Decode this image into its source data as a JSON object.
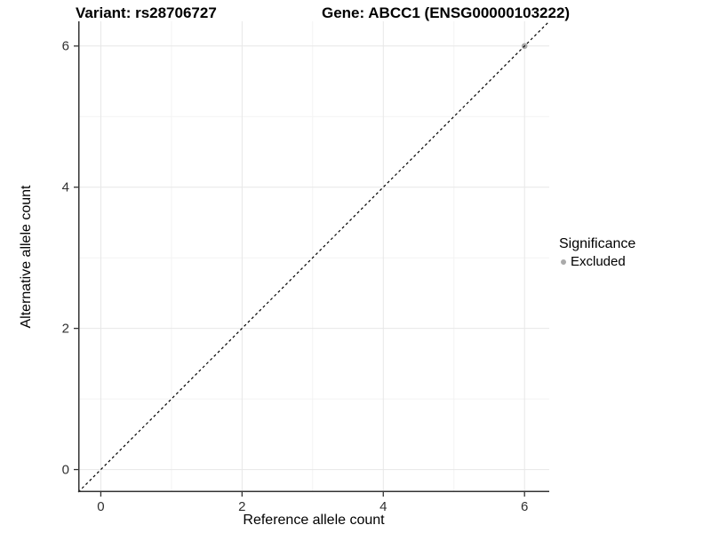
{
  "titles": {
    "variant": "Variant: rs28706727",
    "gene": "Gene: ABCC1 (ENSG00000103222)"
  },
  "chart_data": {
    "type": "scatter",
    "title_left": "Variant: rs28706727",
    "title_right": "Gene: ABCC1 (ENSG00000103222)",
    "xlabel": "Reference allele count",
    "ylabel": "Alternative allele count",
    "xlim": [
      -0.32,
      6.35
    ],
    "ylim": [
      -0.32,
      6.35
    ],
    "x_ticks": [
      0,
      2,
      4,
      6
    ],
    "y_ticks": [
      0,
      2,
      4,
      6
    ],
    "minor_ticks": [
      1,
      3,
      5
    ],
    "grid": "on",
    "background": "#ffffff",
    "major_grid_color": "#e7e7e7",
    "minor_grid_color": "#f3f3f3",
    "axis_line_color": "#333333",
    "reference_line": {
      "kind": "identity y=x",
      "style": "dashed",
      "color": "#000000"
    },
    "series": [
      {
        "name": "Excluded",
        "color": "#aaaaaa",
        "points": [
          {
            "x": 6,
            "y": 6
          }
        ]
      }
    ],
    "legend": {
      "position": "right",
      "title": "Significance",
      "items": [
        {
          "label": "Excluded",
          "color": "#aaaaaa"
        }
      ]
    }
  }
}
